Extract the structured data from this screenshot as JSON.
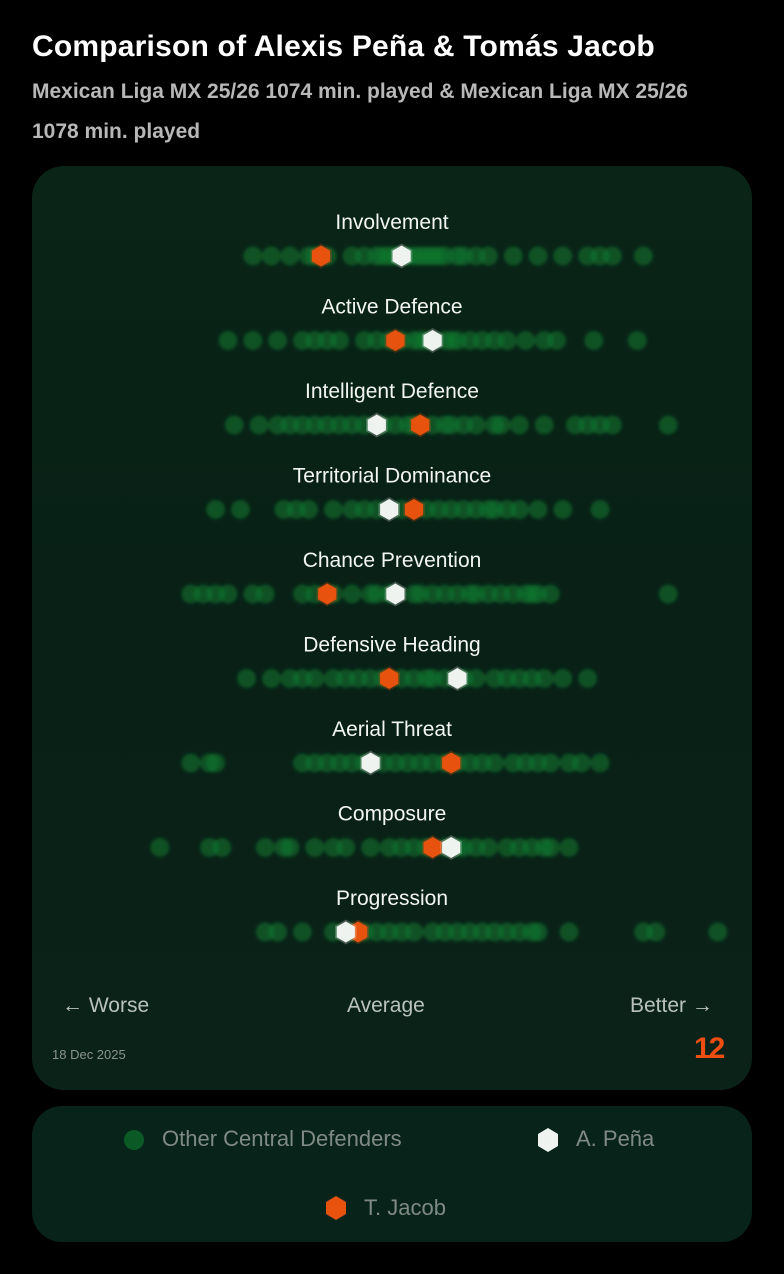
{
  "header": {
    "title": "Comparison of Alexis Peña & Tomás Jacob",
    "subtitle": "Mexican Liga MX 25/26 1074 min. played & Mexican Liga MX 25/26 1078 min. played"
  },
  "axis": {
    "worse": "← Worse",
    "average": "Average",
    "better": "Better →"
  },
  "date": "18 Dec 2025",
  "logo": "12",
  "colors": {
    "others": "#0c7a30",
    "pena": "#eef3f0",
    "jacob": "#e8520f",
    "background": "#000000",
    "card": "#0a2417"
  },
  "legend": {
    "others": "Other Central Defenders",
    "pena": "A. Peña",
    "jacob": "T. Jacob"
  },
  "chart_data": {
    "type": "scatter",
    "title": "Comparison of Alexis Peña & Tomás Jacob",
    "x_scale": "percentile, worse to better",
    "xlim": [
      0,
      100
    ],
    "series": [
      {
        "name": "A. Peña",
        "marker": "hexagon"
      },
      {
        "name": "T. Jacob",
        "marker": "hexagon"
      },
      {
        "name": "Other Central Defenders",
        "marker": "circle"
      }
    ],
    "metrics": [
      {
        "label": "Involvement",
        "pena": 48,
        "jacob": 35,
        "others": [
          24,
          27,
          30,
          33,
          34,
          36,
          40,
          42,
          44,
          45,
          46,
          47,
          49,
          50,
          51,
          52,
          53,
          54,
          55,
          57,
          58,
          60,
          62,
          66,
          70,
          74,
          78,
          80,
          82,
          87
        ]
      },
      {
        "label": "Active Defence",
        "pena": 53,
        "jacob": 47,
        "others": [
          20,
          24,
          28,
          32,
          34,
          36,
          38,
          42,
          44,
          46,
          48,
          50,
          51,
          52,
          55,
          56,
          57,
          59,
          61,
          63,
          65,
          68,
          71,
          73,
          79,
          86
        ]
      },
      {
        "label": "Intelligent Defence",
        "pena": 44,
        "jacob": 51,
        "others": [
          21,
          25,
          28,
          30,
          32,
          34,
          36,
          38,
          40,
          42,
          45,
          47,
          49,
          50,
          53,
          55,
          56,
          58,
          60,
          63,
          64,
          67,
          71,
          76,
          78,
          80,
          82,
          91
        ]
      },
      {
        "label": "Territorial Dominance",
        "pena": 46,
        "jacob": 50,
        "others": [
          18,
          22,
          29,
          31,
          33,
          37,
          40,
          42,
          44,
          48,
          52,
          54,
          56,
          58,
          60,
          62,
          63,
          65,
          67,
          70,
          74,
          80
        ]
      },
      {
        "label": "Chance Prevention",
        "pena": 47,
        "jacob": 36,
        "others": [
          14,
          16,
          18,
          20,
          24,
          26,
          32,
          34,
          37,
          40,
          43,
          44,
          46,
          50,
          51,
          53,
          55,
          57,
          59,
          60,
          62,
          64,
          66,
          68,
          69,
          70,
          72,
          91
        ]
      },
      {
        "label": "Defensive Heading",
        "pena": 57,
        "jacob": 46,
        "others": [
          23,
          27,
          30,
          32,
          34,
          37,
          39,
          41,
          43,
          45,
          48,
          50,
          52,
          53,
          55,
          58,
          60,
          63,
          65,
          67,
          69,
          71,
          74,
          78
        ]
      },
      {
        "label": "Aerial Threat",
        "pena": 43,
        "jacob": 56,
        "others": [
          14,
          17,
          18,
          32,
          34,
          36,
          38,
          40,
          42,
          45,
          47,
          49,
          51,
          53,
          55,
          57,
          59,
          61,
          63,
          66,
          68,
          70,
          72,
          75,
          77,
          80
        ]
      },
      {
        "label": "Composure",
        "pena": 56,
        "jacob": 53,
        "others": [
          9,
          17,
          19,
          26,
          29,
          30,
          34,
          37,
          39,
          43,
          46,
          48,
          50,
          52,
          55,
          57,
          58,
          60,
          62,
          65,
          67,
          69,
          71,
          72,
          75
        ]
      },
      {
        "label": "Progression",
        "pena": 39,
        "jacob": 41,
        "others": [
          26,
          28,
          32,
          37,
          40,
          42,
          44,
          46,
          48,
          50,
          53,
          55,
          57,
          59,
          61,
          63,
          65,
          67,
          69,
          70,
          75,
          87,
          89,
          99
        ]
      }
    ]
  }
}
